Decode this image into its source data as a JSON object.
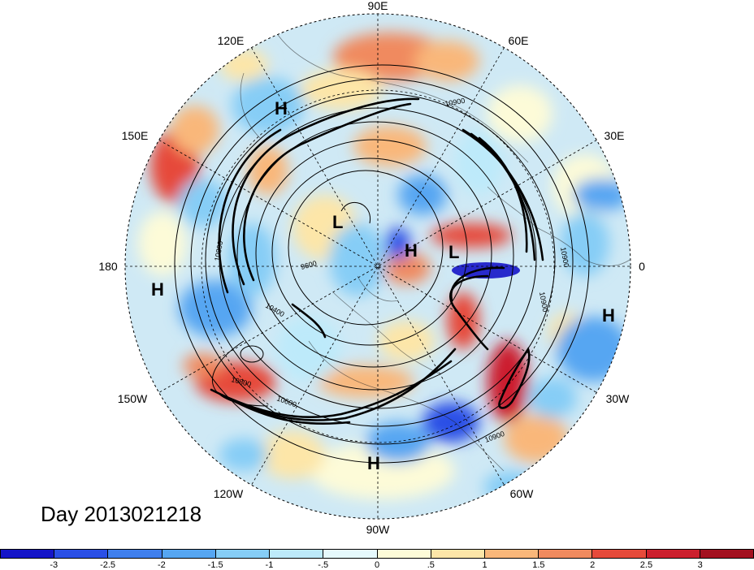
{
  "map": {
    "lon_labels": {
      "e90": "90E",
      "e60": "60E",
      "e30": "30E",
      "e0": "0",
      "w30": "30W",
      "w60": "60W",
      "w90": "90W",
      "w120": "120W",
      "w150": "150W",
      "d180": "180",
      "e150": "150E",
      "e120": "120E"
    },
    "pressure_centers": [
      {
        "id": "h-upper-left",
        "label": "H"
      },
      {
        "id": "l-arctic-left",
        "label": "L"
      },
      {
        "id": "h-pole",
        "label": "H"
      },
      {
        "id": "l-europe",
        "label": "L"
      },
      {
        "id": "h-pacific",
        "label": "H"
      },
      {
        "id": "h-atlantic",
        "label": "H"
      },
      {
        "id": "h-gulf",
        "label": "H"
      }
    ],
    "contour_labels": {
      "c1": "10900",
      "c2": "10900",
      "c3": "10800",
      "c4": "9600",
      "c5": "10400",
      "c6": "10900",
      "c7": "10600",
      "c8": "10800",
      "c9": "10900"
    }
  },
  "title": "Day 2013021218",
  "colorbar": {
    "colors": [
      "#1515c8",
      "#2a4fe6",
      "#3f7fee",
      "#56a6f2",
      "#86cdf6",
      "#bdeafa",
      "#e6f9fc",
      "#fdfbd8",
      "#fde6a8",
      "#f9b77a",
      "#f08a5e",
      "#e64a3a",
      "#cc1f2d",
      "#a3101f"
    ],
    "labels": [
      "-3",
      "-2.5",
      "-2",
      "-1.5",
      "-1",
      "-.5",
      "0",
      ".5",
      "1",
      "1.5",
      "2",
      "2.5",
      "3"
    ]
  }
}
